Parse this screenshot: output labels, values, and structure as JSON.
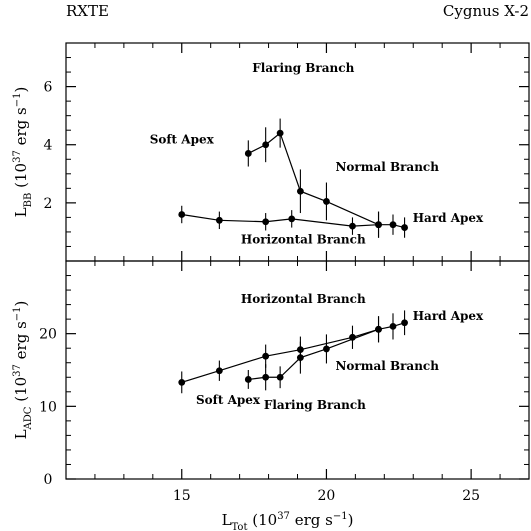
{
  "header": {
    "left_label": "RXTE",
    "right_label": "Cygnus X-2"
  },
  "chart_data": [
    {
      "type": "scatter",
      "panel": "top",
      "ylabel": {
        "main": "L",
        "sub": "BB",
        "rest_a": " (10",
        "sup": "37",
        "rest_b": " erg s",
        "sup2": "−1",
        "rest_c": ")"
      },
      "xlim": [
        11,
        27
      ],
      "ylim": [
        0,
        7.5
      ],
      "yticks": [
        2,
        4,
        6
      ],
      "xticks": [
        15,
        20,
        25
      ],
      "series": [
        {
          "points": [
            {
              "x": 15.0,
              "y": 1.6,
              "err": 0.3
            },
            {
              "x": 16.3,
              "y": 1.4,
              "err": 0.3
            },
            {
              "x": 17.9,
              "y": 1.35,
              "err": 0.3
            },
            {
              "x": 18.8,
              "y": 1.45,
              "err": 0.3
            },
            {
              "x": 20.9,
              "y": 1.2,
              "err": 0.3
            },
            {
              "x": 21.8,
              "y": 1.25,
              "err": 0.45
            },
            {
              "x": 22.3,
              "y": 1.25,
              "err": 0.35
            },
            {
              "x": 22.7,
              "y": 1.15,
              "err": 0.35
            }
          ]
        },
        {
          "points": [
            {
              "x": 17.3,
              "y": 3.7,
              "err": 0.45
            },
            {
              "x": 17.9,
              "y": 4.0,
              "err": 0.6
            },
            {
              "x": 18.4,
              "y": 4.4,
              "err": 0.5
            },
            {
              "x": 19.1,
              "y": 2.4,
              "err": 0.75
            },
            {
              "x": 20.0,
              "y": 2.05,
              "err": 0.65
            },
            {
              "x": 21.8,
              "y": 1.25,
              "err": 0.45
            }
          ]
        }
      ],
      "annotations": [
        {
          "text": "Flaring Branch",
          "x": 19.2,
          "y": 6.5
        },
        {
          "text": "Soft Apex",
          "x": 15.0,
          "y": 4.05
        },
        {
          "text": "Normal Branch",
          "x": 22.1,
          "y": 3.1
        },
        {
          "text": "Hard Apex",
          "x": 24.2,
          "y": 1.35
        },
        {
          "text": "Horizontal Branch",
          "x": 19.2,
          "y": 0.6
        }
      ]
    },
    {
      "type": "scatter",
      "panel": "bottom",
      "ylabel": {
        "main": "L",
        "sub": "ADC",
        "rest_a": " (10",
        "sup": "37",
        "rest_b": " erg s",
        "sup2": "−1",
        "rest_c": ")"
      },
      "xlabel": {
        "main": "L",
        "sub": "Tot",
        "rest_a": " (10",
        "sup": "37",
        "rest_b": " erg s",
        "sup2": "−1",
        "rest_c": ")"
      },
      "xlim": [
        11,
        27
      ],
      "ylim": [
        0,
        30
      ],
      "yticks": [
        0,
        10,
        20
      ],
      "xticks": [
        15,
        20,
        25
      ],
      "series": [
        {
          "points": [
            {
              "x": 15.0,
              "y": 13.3,
              "err": 1.5
            },
            {
              "x": 16.3,
              "y": 14.9,
              "err": 1.4
            },
            {
              "x": 17.9,
              "y": 16.9,
              "err": 1.6
            },
            {
              "x": 19.1,
              "y": 17.8,
              "err": 1.8
            },
            {
              "x": 20.9,
              "y": 19.5,
              "err": 1.6
            },
            {
              "x": 21.8,
              "y": 20.6,
              "err": 1.8
            },
            {
              "x": 22.3,
              "y": 21.0,
              "err": 1.8
            },
            {
              "x": 22.7,
              "y": 21.5,
              "err": 1.7
            }
          ]
        },
        {
          "points": [
            {
              "x": 17.3,
              "y": 13.7,
              "err": 1.3
            },
            {
              "x": 17.9,
              "y": 14.0,
              "err": 1.8
            },
            {
              "x": 18.4,
              "y": 14.0,
              "err": 1.5
            },
            {
              "x": 19.1,
              "y": 16.7,
              "err": 2.2
            },
            {
              "x": 20.0,
              "y": 17.9,
              "err": 2.0
            },
            {
              "x": 21.8,
              "y": 20.6,
              "err": 1.8
            }
          ]
        }
      ],
      "annotations": [
        {
          "text": "Horizontal Branch",
          "x": 19.2,
          "y": 24.2
        },
        {
          "text": "Hard Apex",
          "x": 24.2,
          "y": 21.9
        },
        {
          "text": "Normal Branch",
          "x": 22.1,
          "y": 15.0
        },
        {
          "text": "Soft Apex",
          "x": 16.6,
          "y": 10.3
        },
        {
          "text": "Flaring Branch",
          "x": 19.6,
          "y": 9.6
        }
      ]
    }
  ]
}
